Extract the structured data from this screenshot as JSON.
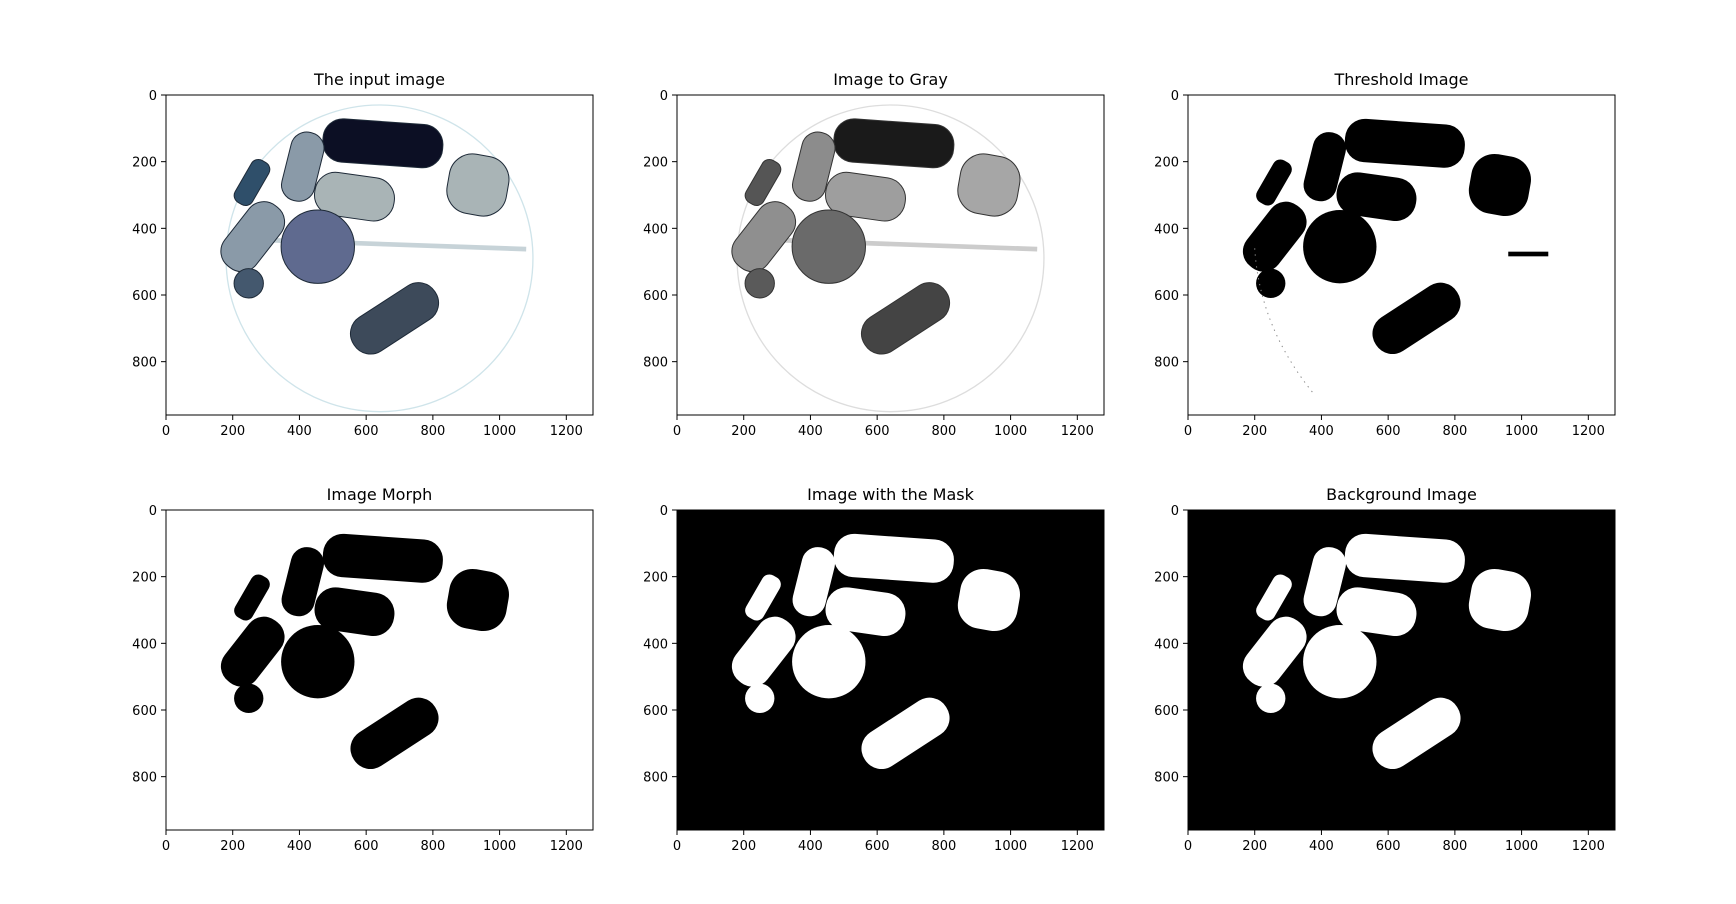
{
  "figure": {
    "panels": [
      {
        "title": "The input image",
        "style": "color"
      },
      {
        "title": "Image to Gray",
        "style": "gray"
      },
      {
        "title": "Threshold Image",
        "style": "threshold"
      },
      {
        "title": "Image Morph",
        "style": "morph"
      },
      {
        "title": "Image with the Mask",
        "style": "mask"
      },
      {
        "title": "Background Image",
        "style": "background"
      }
    ],
    "axes": {
      "x_ticks": [
        "0",
        "200",
        "400",
        "600",
        "800",
        "1000",
        "1200"
      ],
      "y_ticks": [
        "0",
        "200",
        "400",
        "600",
        "800"
      ],
      "x_values": [
        0,
        200,
        400,
        600,
        800,
        1000,
        1200
      ],
      "y_values": [
        0,
        200,
        400,
        600,
        800
      ],
      "x_range": [
        0,
        1280
      ],
      "y_range": [
        960,
        0
      ]
    },
    "colors": {
      "pill_dark_navy": "#0c0f24",
      "pill_gray_blue": "#8a9aa8",
      "pill_light_gray": "#a9b4b6",
      "pill_slate": "#3d4a5a",
      "round_blue": "#5f6a8f",
      "dish_outline": "#cfe4ea"
    }
  }
}
